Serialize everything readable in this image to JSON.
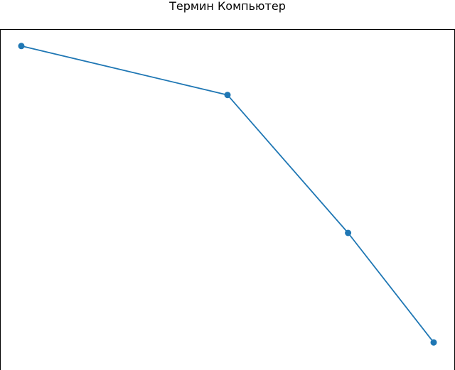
{
  "chart_data": {
    "type": "line",
    "title": "Термин Компьютер",
    "xlabel": "",
    "ylabel": "",
    "x": [
      0,
      1,
      1.585,
      2
    ],
    "series": [
      {
        "values": [
          1.0,
          0.849,
          0.423,
          0.085
        ],
        "color": "#1f77b4",
        "marker": "circle"
      }
    ],
    "xlim": [
      -0.1,
      2.1
    ],
    "ylim": [
      0,
      1.05
    ],
    "grid": false,
    "ticks_visible": false
  }
}
